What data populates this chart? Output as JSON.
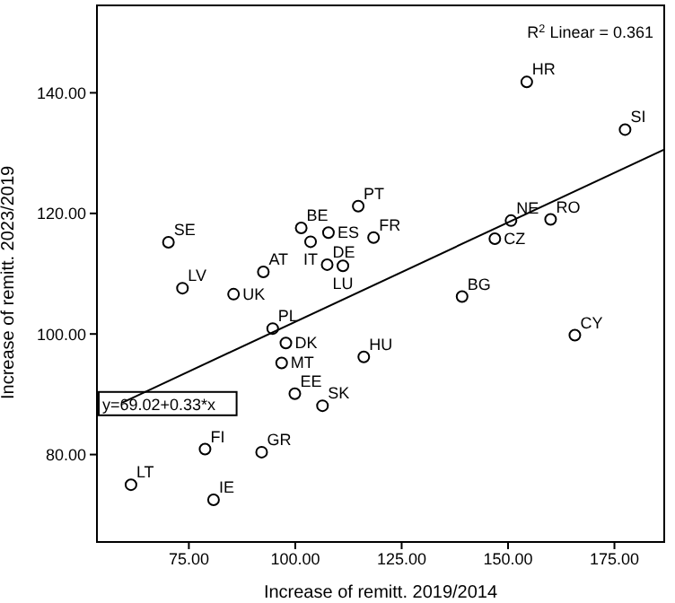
{
  "chart_data": {
    "type": "scatter",
    "xlabel": "Increase of remitt. 2019/2014",
    "ylabel": "Increase of remitt. 2023/2019",
    "xlim": [
      53.4,
      186.7
    ],
    "ylim": [
      65.5,
      154.5
    ],
    "xticks": [
      {
        "value": 75,
        "label": "75.00"
      },
      {
        "value": 100,
        "label": "100.00"
      },
      {
        "value": 125,
        "label": "125.00"
      },
      {
        "value": 150,
        "label": "150.00"
      },
      {
        "value": 175,
        "label": "175.00"
      }
    ],
    "yticks": [
      {
        "value": 80,
        "label": "80.00"
      },
      {
        "value": 100,
        "label": "100.00"
      },
      {
        "value": 120,
        "label": "120.00"
      },
      {
        "value": 140,
        "label": "140.00"
      }
    ],
    "grid": false,
    "legend": false,
    "series": [
      {
        "marker": "circle",
        "color": "#000000",
        "x": [
          154.4,
          177.5,
          114.8,
          101.4,
          107.8,
          118.4,
          70.2,
          150.7,
          160,
          146.9,
          103.6,
          92.5,
          107.5,
          111.2,
          73.5,
          85.5,
          139.2,
          94.7,
          165.7,
          97.8,
          116.1,
          96.8,
          99.9,
          106.4,
          78.8,
          92.1,
          61.4,
          80.8
        ],
        "values": [
          141.8,
          133.9,
          121.2,
          117.6,
          116.8,
          116.0,
          115.2,
          118.8,
          119.0,
          115.8,
          115.3,
          110.3,
          111.5,
          111.3,
          107.6,
          106.6,
          106.2,
          100.9,
          99.8,
          98.5,
          96.2,
          95.2,
          90.1,
          88.1,
          80.9,
          80.4,
          75.0,
          72.5
        ]
      },
      {
        "type": "line",
        "color": "#000000",
        "x": [
          59.3,
          186.7
        ],
        "values": [
          88.6,
          130.6
        ]
      }
    ],
    "annotations": [
      "R$^{2}$ Linear = 0.361",
      "y=69.02+0.33*x",
      {
        "text": "HR",
        "x": 154.4,
        "y": 141.8
      },
      {
        "text": "SI",
        "x": 177.5,
        "y": 133.9
      },
      {
        "text": "PT",
        "x": 114.8,
        "y": 121.2
      },
      {
        "text": "BE",
        "x": 101.4,
        "y": 117.6
      },
      {
        "text": "ES",
        "x": 107.8,
        "y": 116.8
      },
      {
        "text": "FR",
        "x": 118.4,
        "y": 116.0
      },
      {
        "text": "SE",
        "x": 70.2,
        "y": 115.2
      },
      {
        "text": "NE",
        "x": 150.7,
        "y": 118.8
      },
      {
        "text": "RO",
        "x": 160,
        "y": 119.0
      },
      {
        "text": "CZ",
        "x": 146.9,
        "y": 115.8
      },
      {
        "text": "IT",
        "x": 103.6,
        "y": 115.3
      },
      {
        "text": "AT",
        "x": 92.5,
        "y": 110.3
      },
      {
        "text": "DE",
        "x": 107.5,
        "y": 111.5
      },
      {
        "text": "LU",
        "x": 111.2,
        "y": 111.3
      },
      {
        "text": "LV",
        "x": 73.5,
        "y": 107.6
      },
      {
        "text": "UK",
        "x": 85.5,
        "y": 106.6
      },
      {
        "text": "BG",
        "x": 139.2,
        "y": 106.2
      },
      {
        "text": "PL",
        "x": 94.7,
        "y": 100.9
      },
      {
        "text": "CY",
        "x": 165.7,
        "y": 99.8
      },
      {
        "text": "DK",
        "x": 97.8,
        "y": 98.5
      },
      {
        "text": "HU",
        "x": 116.1,
        "y": 96.2
      },
      {
        "text": "MT",
        "x": 96.8,
        "y": 95.2
      },
      {
        "text": "EE",
        "x": 99.9,
        "y": 90.1
      },
      {
        "text": "SK",
        "x": 106.4,
        "y": 88.1
      },
      {
        "text": "FI",
        "x": 78.8,
        "y": 80.9
      },
      {
        "text": "GR",
        "x": 92.1,
        "y": 80.4
      },
      {
        "text": "LT",
        "x": 61.4,
        "y": 75.0
      },
      {
        "text": "IE",
        "x": 80.8,
        "y": 72.5
      }
    ]
  }
}
